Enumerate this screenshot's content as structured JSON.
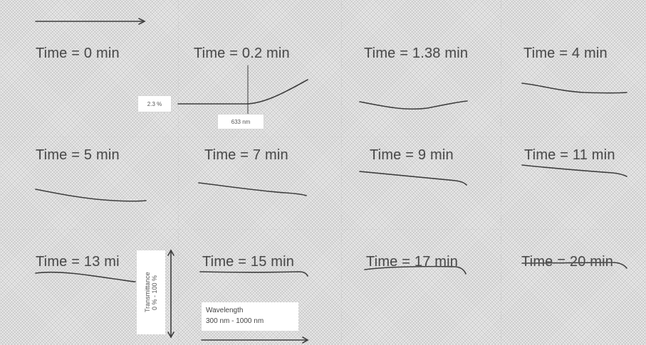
{
  "panels": [
    {
      "label": "Time = 0 min"
    },
    {
      "label": "Time = 0.2 min"
    },
    {
      "label": "Time = 1.38 min"
    },
    {
      "label": "Time = 4 min"
    },
    {
      "label": "Time = 5 min"
    },
    {
      "label": "Time = 7 min"
    },
    {
      "label": "Time = 9 min"
    },
    {
      "label": "Time = 11 min"
    },
    {
      "label": "Time = 13 mi"
    },
    {
      "label": "Time = 15 min"
    },
    {
      "label": "Time = 17 min"
    },
    {
      "label": "Time = 20 min"
    }
  ],
  "annotations": {
    "transmittance_marker": "2.3 %",
    "wavelength_marker": "633 nm",
    "y_axis_title": "Transmittance",
    "y_axis_range": "0 % - 100 %",
    "x_axis_title": "Wavelength",
    "x_axis_range": "300 nm - 1000 nm"
  },
  "colors": {
    "curve": "#3d3d3d",
    "background": "#eaeaea",
    "label_text": "#4a4a4a"
  }
}
